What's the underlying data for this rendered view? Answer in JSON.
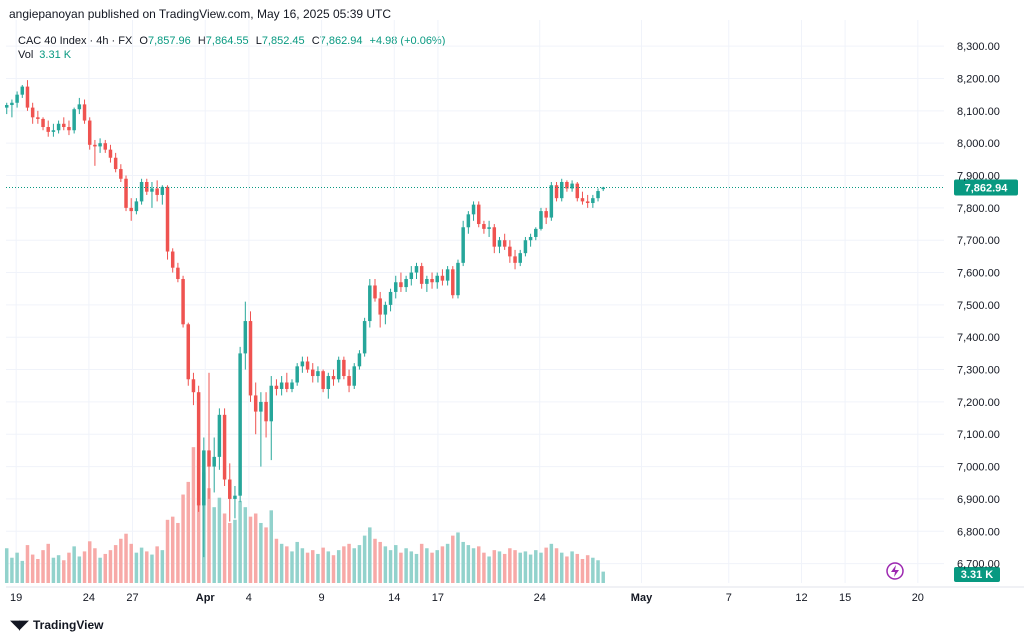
{
  "publisher_line": "angiepanoyan published on TradingView.com, May 16, 2025 05:39 UTC",
  "legend": {
    "symbol": "CAC 40 Index · 4h · FX",
    "o_label": "O",
    "o": "7,857.96",
    "h_label": "H",
    "h": "7,864.55",
    "l_label": "L",
    "l": "7,852.45",
    "c_label": "C",
    "c": "7,862.94",
    "change": "+4.98 (+0.06%)",
    "vol_label": "Vol",
    "vol": "3.31 K"
  },
  "footer": {
    "brand": "TradingView",
    "brand_icon": "tradingview-logo-icon"
  },
  "colors": {
    "up": "#26a69a",
    "down": "#ef5350",
    "vol_up": "#92d2cc",
    "vol_down": "#f7a9a7",
    "price_line": "#089981"
  },
  "chart_data": {
    "type": "candlestick",
    "y_ticks": [
      "8,300.00",
      "8,200.00",
      "8,100.00",
      "8,000.00",
      "7,900.00",
      "7,800.00",
      "7,700.00",
      "7,600.00",
      "7,500.00",
      "7,400.00",
      "7,300.00",
      "7,200.00",
      "7,100.00",
      "7,000.00",
      "6,900.00",
      "6,800.00",
      "6,700.00"
    ],
    "y_tick_values": [
      8300,
      8200,
      8100,
      8000,
      7900,
      7800,
      7700,
      7600,
      7500,
      7400,
      7300,
      7200,
      7100,
      7000,
      6900,
      6800,
      6700
    ],
    "ylim": [
      6640,
      8350
    ],
    "x_ticks": [
      {
        "label": "19",
        "day": 19
      },
      {
        "label": "24",
        "day": 24
      },
      {
        "label": "27",
        "day": 27
      },
      {
        "label": "Apr",
        "day": 32,
        "bold": true
      },
      {
        "label": "4",
        "day": 35
      },
      {
        "label": "9",
        "day": 40
      },
      {
        "label": "14",
        "day": 45
      },
      {
        "label": "17",
        "day": 48
      },
      {
        "label": "24",
        "day": 55
      },
      {
        "label": "May",
        "day": 62,
        "bold": true
      },
      {
        "label": "7",
        "day": 68
      },
      {
        "label": "12",
        "day": 73
      },
      {
        "label": "15",
        "day": 76
      },
      {
        "label": "20",
        "day": 81
      }
    ],
    "x_range_days": [
      18.3,
      82.8
    ],
    "bars_per_day": 3,
    "first_bar_day": 18.35,
    "last_price": 7862.94,
    "last_price_label": "7,862.94",
    "last_volume_label": "3.31 K",
    "volume_max": 100,
    "candles": [
      {
        "o": 8110,
        "h": 8125,
        "l": 8090,
        "c": 8118,
        "v": 55
      },
      {
        "o": 8118,
        "h": 8135,
        "l": 8080,
        "c": 8125,
        "v": 40
      },
      {
        "o": 8125,
        "h": 8160,
        "l": 8110,
        "c": 8150,
        "v": 48
      },
      {
        "o": 8150,
        "h": 8180,
        "l": 8140,
        "c": 8175,
        "v": 35
      },
      {
        "o": 8175,
        "h": 8195,
        "l": 8100,
        "c": 8110,
        "v": 60
      },
      {
        "o": 8110,
        "h": 8125,
        "l": 8060,
        "c": 8080,
        "v": 45
      },
      {
        "o": 8080,
        "h": 8100,
        "l": 8060,
        "c": 8075,
        "v": 38
      },
      {
        "o": 8075,
        "h": 8080,
        "l": 8040,
        "c": 8050,
        "v": 52
      },
      {
        "o": 8050,
        "h": 8070,
        "l": 8020,
        "c": 8035,
        "v": 62
      },
      {
        "o": 8035,
        "h": 8060,
        "l": 8020,
        "c": 8040,
        "v": 40
      },
      {
        "o": 8040,
        "h": 8070,
        "l": 8030,
        "c": 8060,
        "v": 44
      },
      {
        "o": 8060,
        "h": 8080,
        "l": 8040,
        "c": 8050,
        "v": 36
      },
      {
        "o": 8050,
        "h": 8070,
        "l": 8025,
        "c": 8040,
        "v": 48
      },
      {
        "o": 8040,
        "h": 8110,
        "l": 8030,
        "c": 8105,
        "v": 58
      },
      {
        "o": 8105,
        "h": 8140,
        "l": 8090,
        "c": 8120,
        "v": 42
      },
      {
        "o": 8120,
        "h": 8135,
        "l": 8060,
        "c": 8070,
        "v": 50
      },
      {
        "o": 8070,
        "h": 8080,
        "l": 7980,
        "c": 7995,
        "v": 66
      },
      {
        "o": 7995,
        "h": 8010,
        "l": 7930,
        "c": 7990,
        "v": 55
      },
      {
        "o": 7990,
        "h": 8015,
        "l": 7970,
        "c": 8000,
        "v": 40
      },
      {
        "o": 8000,
        "h": 8010,
        "l": 7970,
        "c": 7980,
        "v": 46
      },
      {
        "o": 7980,
        "h": 7995,
        "l": 7940,
        "c": 7955,
        "v": 52
      },
      {
        "o": 7955,
        "h": 7970,
        "l": 7910,
        "c": 7920,
        "v": 60
      },
      {
        "o": 7920,
        "h": 7935,
        "l": 7880,
        "c": 7890,
        "v": 70
      },
      {
        "o": 7890,
        "h": 7900,
        "l": 7790,
        "c": 7800,
        "v": 78
      },
      {
        "o": 7800,
        "h": 7830,
        "l": 7760,
        "c": 7790,
        "v": 62
      },
      {
        "o": 7790,
        "h": 7830,
        "l": 7780,
        "c": 7820,
        "v": 48
      },
      {
        "o": 7820,
        "h": 7890,
        "l": 7810,
        "c": 7880,
        "v": 56
      },
      {
        "o": 7880,
        "h": 7890,
        "l": 7840,
        "c": 7850,
        "v": 50
      },
      {
        "o": 7850,
        "h": 7880,
        "l": 7800,
        "c": 7860,
        "v": 45
      },
      {
        "o": 7860,
        "h": 7885,
        "l": 7820,
        "c": 7840,
        "v": 58
      },
      {
        "o": 7840,
        "h": 7870,
        "l": 7810,
        "c": 7865,
        "v": 52
      },
      {
        "o": 7865,
        "h": 7870,
        "l": 7640,
        "c": 7665,
        "v": 100
      },
      {
        "o": 7665,
        "h": 7675,
        "l": 7600,
        "c": 7615,
        "v": 105
      },
      {
        "o": 7615,
        "h": 7630,
        "l": 7570,
        "c": 7580,
        "v": 95
      },
      {
        "o": 7580,
        "h": 7590,
        "l": 7430,
        "c": 7440,
        "v": 140
      },
      {
        "o": 7440,
        "h": 7445,
        "l": 7250,
        "c": 7270,
        "v": 160
      },
      {
        "o": 7270,
        "h": 7290,
        "l": 7190,
        "c": 7230,
        "v": 215
      },
      {
        "o": 7230,
        "h": 7250,
        "l": 6860,
        "c": 6880,
        "v": 195
      },
      {
        "o": 6880,
        "h": 7090,
        "l": 6720,
        "c": 7050,
        "v": 175
      },
      {
        "o": 7050,
        "h": 7290,
        "l": 6900,
        "c": 7000,
        "v": 150
      },
      {
        "o": 7000,
        "h": 7090,
        "l": 6920,
        "c": 7030,
        "v": 120
      },
      {
        "o": 7030,
        "h": 7180,
        "l": 6990,
        "c": 7160,
        "v": 135
      },
      {
        "o": 7160,
        "h": 7180,
        "l": 6940,
        "c": 6960,
        "v": 110
      },
      {
        "o": 6960,
        "h": 7010,
        "l": 6830,
        "c": 6900,
        "v": 95
      },
      {
        "o": 6900,
        "h": 6940,
        "l": 6840,
        "c": 6910,
        "v": 100
      },
      {
        "o": 6910,
        "h": 7370,
        "l": 6890,
        "c": 7350,
        "v": 130
      },
      {
        "o": 7350,
        "h": 7510,
        "l": 7300,
        "c": 7450,
        "v": 120
      },
      {
        "o": 7450,
        "h": 7480,
        "l": 7200,
        "c": 7220,
        "v": 105
      },
      {
        "o": 7220,
        "h": 7260,
        "l": 7100,
        "c": 7170,
        "v": 110
      },
      {
        "o": 7170,
        "h": 7230,
        "l": 7000,
        "c": 7200,
        "v": 95
      },
      {
        "o": 7200,
        "h": 7230,
        "l": 7090,
        "c": 7140,
        "v": 88
      },
      {
        "o": 7140,
        "h": 7280,
        "l": 7020,
        "c": 7250,
        "v": 115
      },
      {
        "o": 7250,
        "h": 7270,
        "l": 7220,
        "c": 7240,
        "v": 70
      },
      {
        "o": 7240,
        "h": 7280,
        "l": 7220,
        "c": 7260,
        "v": 62
      },
      {
        "o": 7260,
        "h": 7290,
        "l": 7230,
        "c": 7240,
        "v": 58
      },
      {
        "o": 7240,
        "h": 7270,
        "l": 7230,
        "c": 7260,
        "v": 50
      },
      {
        "o": 7260,
        "h": 7320,
        "l": 7250,
        "c": 7310,
        "v": 65
      },
      {
        "o": 7310,
        "h": 7340,
        "l": 7290,
        "c": 7325,
        "v": 55
      },
      {
        "o": 7325,
        "h": 7340,
        "l": 7290,
        "c": 7300,
        "v": 48
      },
      {
        "o": 7300,
        "h": 7320,
        "l": 7260,
        "c": 7280,
        "v": 52
      },
      {
        "o": 7280,
        "h": 7310,
        "l": 7260,
        "c": 7295,
        "v": 46
      },
      {
        "o": 7295,
        "h": 7300,
        "l": 7230,
        "c": 7240,
        "v": 56
      },
      {
        "o": 7240,
        "h": 7290,
        "l": 7210,
        "c": 7280,
        "v": 50
      },
      {
        "o": 7280,
        "h": 7300,
        "l": 7250,
        "c": 7270,
        "v": 44
      },
      {
        "o": 7270,
        "h": 7340,
        "l": 7260,
        "c": 7330,
        "v": 52
      },
      {
        "o": 7330,
        "h": 7340,
        "l": 7270,
        "c": 7280,
        "v": 58
      },
      {
        "o": 7280,
        "h": 7300,
        "l": 7230,
        "c": 7250,
        "v": 62
      },
      {
        "o": 7250,
        "h": 7320,
        "l": 7240,
        "c": 7310,
        "v": 55
      },
      {
        "o": 7310,
        "h": 7360,
        "l": 7300,
        "c": 7350,
        "v": 60
      },
      {
        "o": 7350,
        "h": 7460,
        "l": 7340,
        "c": 7450,
        "v": 75
      },
      {
        "o": 7450,
        "h": 7580,
        "l": 7430,
        "c": 7560,
        "v": 88
      },
      {
        "o": 7560,
        "h": 7580,
        "l": 7510,
        "c": 7520,
        "v": 70
      },
      {
        "o": 7520,
        "h": 7540,
        "l": 7430,
        "c": 7470,
        "v": 65
      },
      {
        "o": 7470,
        "h": 7510,
        "l": 7440,
        "c": 7500,
        "v": 58
      },
      {
        "o": 7500,
        "h": 7550,
        "l": 7480,
        "c": 7540,
        "v": 52
      },
      {
        "o": 7540,
        "h": 7590,
        "l": 7520,
        "c": 7570,
        "v": 60
      },
      {
        "o": 7570,
        "h": 7600,
        "l": 7540,
        "c": 7555,
        "v": 48
      },
      {
        "o": 7555,
        "h": 7590,
        "l": 7540,
        "c": 7580,
        "v": 55
      },
      {
        "o": 7580,
        "h": 7620,
        "l": 7560,
        "c": 7600,
        "v": 50
      },
      {
        "o": 7600,
        "h": 7630,
        "l": 7580,
        "c": 7620,
        "v": 46
      },
      {
        "o": 7620,
        "h": 7630,
        "l": 7550,
        "c": 7565,
        "v": 62
      },
      {
        "o": 7565,
        "h": 7590,
        "l": 7540,
        "c": 7580,
        "v": 55
      },
      {
        "o": 7580,
        "h": 7600,
        "l": 7550,
        "c": 7570,
        "v": 48
      },
      {
        "o": 7570,
        "h": 7600,
        "l": 7550,
        "c": 7590,
        "v": 52
      },
      {
        "o": 7590,
        "h": 7610,
        "l": 7560,
        "c": 7575,
        "v": 58
      },
      {
        "o": 7575,
        "h": 7620,
        "l": 7560,
        "c": 7610,
        "v": 62
      },
      {
        "o": 7610,
        "h": 7620,
        "l": 7520,
        "c": 7530,
        "v": 75
      },
      {
        "o": 7530,
        "h": 7640,
        "l": 7520,
        "c": 7630,
        "v": 80
      },
      {
        "o": 7630,
        "h": 7760,
        "l": 7620,
        "c": 7740,
        "v": 65
      },
      {
        "o": 7740,
        "h": 7790,
        "l": 7720,
        "c": 7780,
        "v": 60
      },
      {
        "o": 7780,
        "h": 7820,
        "l": 7760,
        "c": 7810,
        "v": 55
      },
      {
        "o": 7810,
        "h": 7820,
        "l": 7740,
        "c": 7750,
        "v": 58
      },
      {
        "o": 7750,
        "h": 7760,
        "l": 7720,
        "c": 7735,
        "v": 48
      },
      {
        "o": 7735,
        "h": 7760,
        "l": 7710,
        "c": 7740,
        "v": 42
      },
      {
        "o": 7740,
        "h": 7750,
        "l": 7660,
        "c": 7680,
        "v": 52
      },
      {
        "o": 7680,
        "h": 7710,
        "l": 7660,
        "c": 7700,
        "v": 50
      },
      {
        "o": 7700,
        "h": 7720,
        "l": 7670,
        "c": 7680,
        "v": 46
      },
      {
        "o": 7680,
        "h": 7700,
        "l": 7630,
        "c": 7650,
        "v": 55
      },
      {
        "o": 7650,
        "h": 7670,
        "l": 7610,
        "c": 7630,
        "v": 52
      },
      {
        "o": 7630,
        "h": 7670,
        "l": 7620,
        "c": 7660,
        "v": 48
      },
      {
        "o": 7660,
        "h": 7710,
        "l": 7650,
        "c": 7700,
        "v": 50
      },
      {
        "o": 7700,
        "h": 7720,
        "l": 7680,
        "c": 7710,
        "v": 45
      },
      {
        "o": 7710,
        "h": 7740,
        "l": 7700,
        "c": 7735,
        "v": 52
      },
      {
        "o": 7735,
        "h": 7800,
        "l": 7730,
        "c": 7790,
        "v": 48
      },
      {
        "o": 7790,
        "h": 7800,
        "l": 7750,
        "c": 7770,
        "v": 56
      },
      {
        "o": 7770,
        "h": 7880,
        "l": 7760,
        "c": 7870,
        "v": 62
      },
      {
        "o": 7870,
        "h": 7880,
        "l": 7820,
        "c": 7830,
        "v": 55
      },
      {
        "o": 7830,
        "h": 7890,
        "l": 7820,
        "c": 7880,
        "v": 48
      },
      {
        "o": 7880,
        "h": 7885,
        "l": 7850,
        "c": 7860,
        "v": 42
      },
      {
        "o": 7860,
        "h": 7885,
        "l": 7850,
        "c": 7875,
        "v": 50
      },
      {
        "o": 7875,
        "h": 7880,
        "l": 7820,
        "c": 7830,
        "v": 46
      },
      {
        "o": 7830,
        "h": 7850,
        "l": 7810,
        "c": 7820,
        "v": 38
      },
      {
        "o": 7820,
        "h": 7840,
        "l": 7800,
        "c": 7815,
        "v": 44
      },
      {
        "o": 7815,
        "h": 7840,
        "l": 7800,
        "c": 7830,
        "v": 40
      },
      {
        "o": 7830,
        "h": 7860,
        "l": 7820,
        "c": 7852,
        "v": 36
      },
      {
        "o": 7858,
        "h": 7865,
        "l": 7852,
        "c": 7863,
        "v": 18
      }
    ]
  }
}
